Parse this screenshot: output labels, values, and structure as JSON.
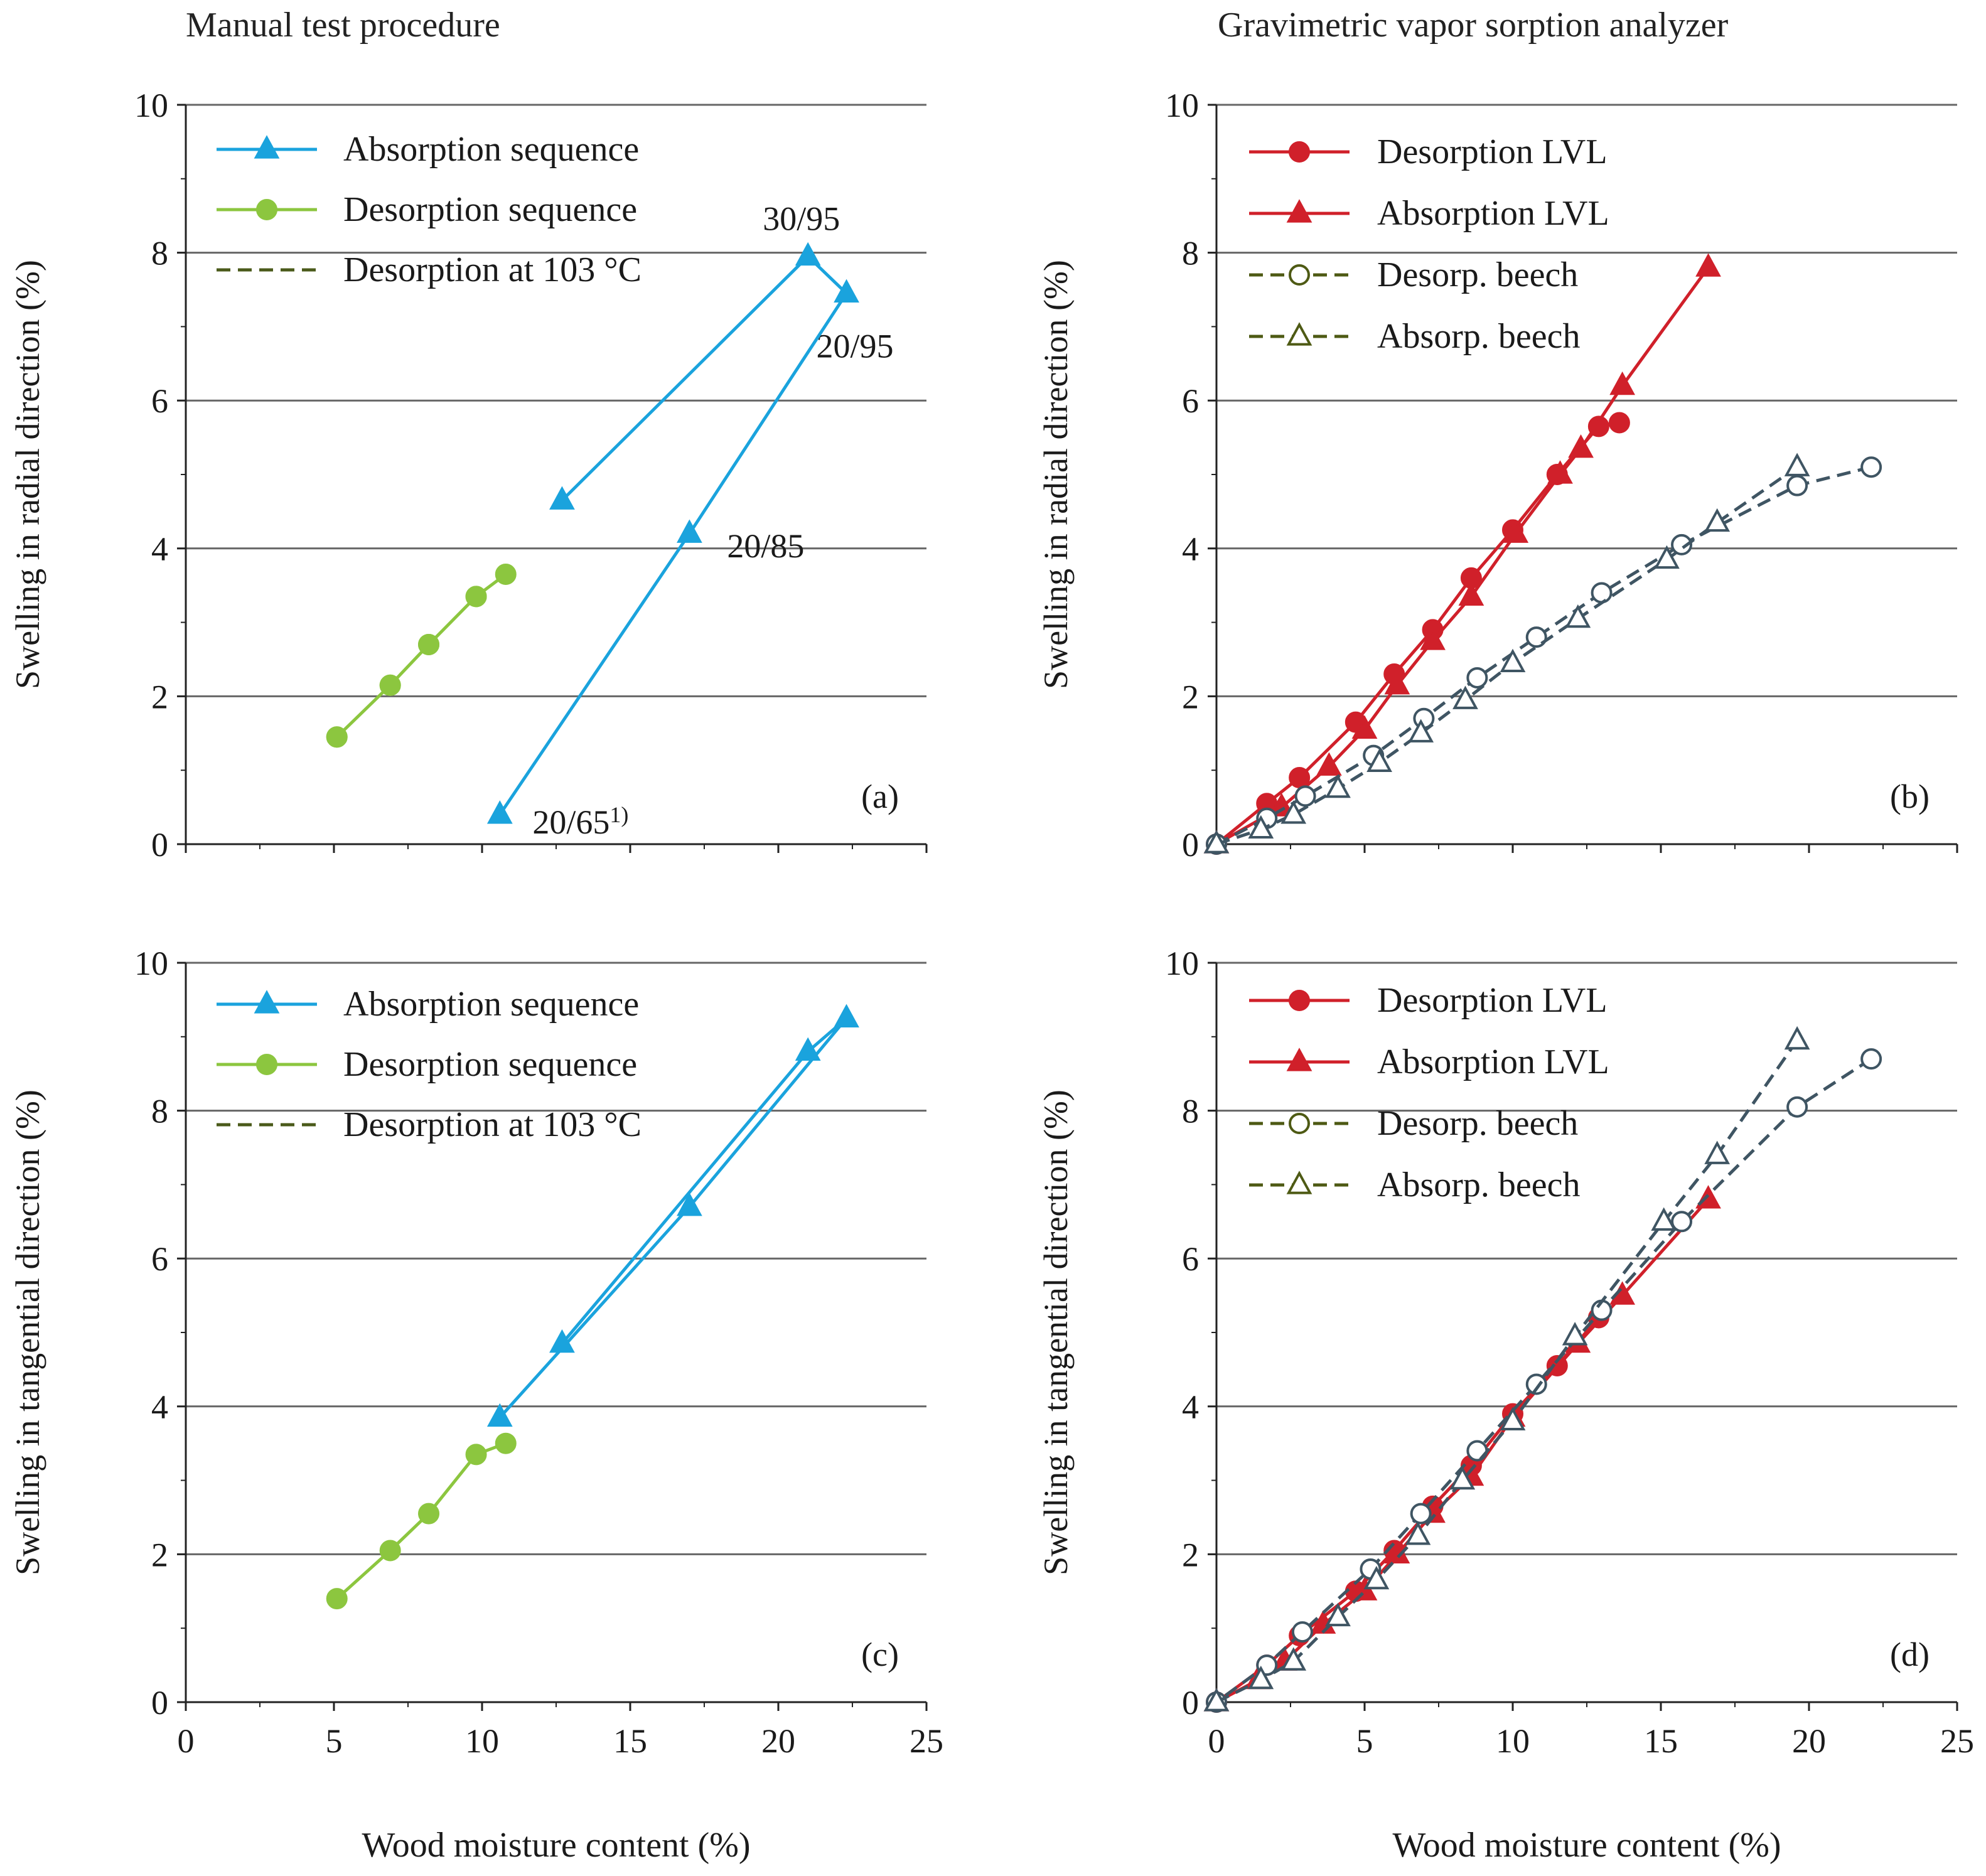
{
  "column_titles": {
    "left": "Manual test procedure",
    "right": "Gravimetric vapor sorption analyzer"
  },
  "colors": {
    "absorption_seq": "#1aa3dd",
    "desorption_seq": "#8cc63f",
    "desorption_103": "#4a5a1a",
    "lvl": "#d0202a",
    "beech": "#3f5563",
    "beech_legend": "#4e5a14",
    "grid": "#666666",
    "axis": "#222222"
  },
  "chart_data": [
    {
      "id": "a",
      "type": "line",
      "panel_label": "(a)",
      "xlabel": "",
      "ylabel": "Swelling in radial direction (%)",
      "xlim": [
        0,
        25
      ],
      "ylim": [
        0,
        10
      ],
      "xticks": [
        0,
        5,
        10,
        15,
        20,
        25
      ],
      "show_xtick_labels": false,
      "yticks": [
        0,
        2,
        4,
        6,
        8,
        10
      ],
      "grid_y": [
        2,
        4,
        6,
        8,
        10
      ],
      "legend_location": "top-left",
      "series": [
        {
          "name": "Absorption sequence",
          "color_key": "absorption_seq",
          "marker": "triangle",
          "fill": true,
          "dash": false,
          "x": [
            10.6,
            17.0,
            22.3,
            21.0,
            12.7
          ],
          "y": [
            0.4,
            4.2,
            7.45,
            7.95,
            4.65
          ]
        },
        {
          "name": "Desorption sequence",
          "color_key": "desorption_seq",
          "marker": "circle",
          "fill": true,
          "dash": false,
          "x": [
            5.1,
            6.9,
            8.2,
            9.8,
            10.8,
            9.8,
            8.2,
            6.9,
            5.1
          ],
          "y": [
            1.45,
            2.15,
            2.7,
            3.35,
            3.65,
            3.35,
            2.7,
            2.15,
            1.45
          ]
        },
        {
          "name": "Desorption at 103 °C",
          "color_key": "desorption_103",
          "marker": "none",
          "fill": false,
          "dash": true,
          "x": [],
          "y": []
        }
      ],
      "annotations": [
        {
          "text": "30/95",
          "x": 21.0,
          "y": 7.95
        },
        {
          "text": "20/95",
          "x": 22.3,
          "y": 7.45
        },
        {
          "text": "20/85",
          "x": 17.0,
          "y": 4.2
        },
        {
          "text": "20/65",
          "sup": "1)",
          "x": 10.6,
          "y": 0.4
        }
      ]
    },
    {
      "id": "b",
      "type": "line",
      "panel_label": "(b)",
      "xlabel": "",
      "ylabel": "Swelling in radial direction (%)",
      "xlim": [
        0,
        25
      ],
      "ylim": [
        0,
        10
      ],
      "xticks": [
        0,
        5,
        10,
        15,
        20,
        25
      ],
      "show_xtick_labels": false,
      "yticks": [
        0,
        2,
        4,
        6,
        8,
        10
      ],
      "grid_y": [
        2,
        4,
        6,
        8,
        10
      ],
      "legend_location": "top-left",
      "series": [
        {
          "name": "Desorption LVL",
          "color_key": "lvl",
          "marker": "circle",
          "fill": true,
          "dash": false,
          "x": [
            13.6,
            12.9,
            11.5,
            10.0,
            8.6,
            7.3,
            6.0,
            4.7,
            2.8,
            1.7,
            0.0
          ],
          "y": [
            5.7,
            5.65,
            5.0,
            4.25,
            3.6,
            2.9,
            2.3,
            1.65,
            0.9,
            0.55,
            0.0
          ]
        },
        {
          "name": "Absorption LVL",
          "color_key": "lvl",
          "marker": "triangle",
          "fill": true,
          "dash": false,
          "x": [
            0.0,
            2.2,
            3.8,
            5.0,
            6.1,
            7.3,
            8.6,
            10.1,
            11.6,
            12.3,
            13.7,
            16.6
          ],
          "y": [
            0.0,
            0.5,
            1.05,
            1.55,
            2.15,
            2.75,
            3.35,
            4.2,
            5.0,
            5.35,
            6.2,
            7.8
          ]
        },
        {
          "name": "Desorp. beech",
          "color_key": "beech",
          "marker": "circle",
          "fill": false,
          "dash": true,
          "legend_color_key": "beech_legend",
          "x": [
            22.1,
            19.6,
            15.7,
            13.0,
            10.8,
            8.8,
            7.0,
            5.3,
            3.0,
            1.7,
            0.0
          ],
          "y": [
            5.1,
            4.85,
            4.05,
            3.4,
            2.8,
            2.25,
            1.7,
            1.2,
            0.65,
            0.35,
            0.0
          ]
        },
        {
          "name": "Absorp. beech",
          "color_key": "beech",
          "marker": "triangle",
          "fill": false,
          "dash": true,
          "legend_color_key": "beech_legend",
          "x": [
            0.0,
            1.5,
            2.6,
            4.1,
            5.5,
            6.9,
            8.4,
            10.0,
            12.2,
            15.2,
            16.9,
            19.6
          ],
          "y": [
            0.0,
            0.2,
            0.4,
            0.75,
            1.1,
            1.5,
            1.95,
            2.45,
            3.05,
            3.85,
            4.35,
            5.1
          ]
        }
      ]
    },
    {
      "id": "c",
      "type": "line",
      "panel_label": "(c)",
      "xlabel": "Wood moisture content (%)",
      "ylabel": "Swelling in tangential direction (%)",
      "xlim": [
        0,
        25
      ],
      "ylim": [
        0,
        10
      ],
      "xticks": [
        0,
        5,
        10,
        15,
        20,
        25
      ],
      "show_xtick_labels": true,
      "yticks": [
        0,
        2,
        4,
        6,
        8,
        10
      ],
      "grid_y": [
        2,
        4,
        6,
        8,
        10
      ],
      "legend_location": "top-left",
      "series": [
        {
          "name": "Absorption sequence",
          "color_key": "absorption_seq",
          "marker": "triangle",
          "fill": true,
          "dash": false,
          "x": [
            10.6,
            17.0,
            22.3,
            21.0,
            12.7
          ],
          "y": [
            3.85,
            6.7,
            9.25,
            8.8,
            4.85
          ]
        },
        {
          "name": "Desorption sequence",
          "color_key": "desorption_seq",
          "marker": "circle",
          "fill": true,
          "dash": false,
          "x": [
            10.8,
            9.8,
            8.2,
            6.9,
            5.1
          ],
          "y": [
            3.5,
            3.35,
            2.55,
            2.05,
            1.4
          ]
        },
        {
          "name": "Desorption at 103 °C",
          "color_key": "desorption_103",
          "marker": "none",
          "fill": false,
          "dash": true,
          "x": [],
          "y": []
        }
      ]
    },
    {
      "id": "d",
      "type": "line",
      "panel_label": "(d)",
      "xlabel": "Wood moisture content (%)",
      "ylabel": "Swelling in tangential direction (%)",
      "xlim": [
        0,
        25
      ],
      "ylim": [
        0,
        10
      ],
      "xticks": [
        0,
        5,
        10,
        15,
        20,
        25
      ],
      "show_xtick_labels": true,
      "yticks": [
        0,
        2,
        4,
        6,
        8,
        10
      ],
      "grid_y": [
        2,
        4,
        6,
        8,
        10
      ],
      "legend_location": "top-left",
      "series": [
        {
          "name": "Desorption LVL",
          "color_key": "lvl",
          "marker": "circle",
          "fill": true,
          "dash": false,
          "x": [
            12.9,
            11.5,
            10.0,
            8.6,
            7.3,
            6.0,
            4.7,
            2.8,
            1.7,
            0.0
          ],
          "y": [
            5.2,
            4.55,
            3.9,
            3.2,
            2.65,
            2.05,
            1.5,
            0.9,
            0.5,
            0.0
          ]
        },
        {
          "name": "Absorption LVL",
          "color_key": "lvl",
          "marker": "triangle",
          "fill": true,
          "dash": false,
          "x": [
            0.0,
            1.4,
            2.3,
            3.6,
            5.0,
            6.1,
            7.3,
            8.6,
            10.0,
            12.2,
            13.7,
            16.6
          ],
          "y": [
            0.0,
            0.3,
            0.55,
            1.05,
            1.5,
            2.0,
            2.55,
            3.05,
            3.85,
            4.85,
            5.5,
            6.8
          ]
        },
        {
          "name": "Desorp. beech",
          "color_key": "beech",
          "marker": "circle",
          "fill": false,
          "dash": true,
          "legend_color_key": "beech_legend",
          "x": [
            22.1,
            19.6,
            15.7,
            13.0,
            10.8,
            8.8,
            6.9,
            5.2,
            2.9,
            1.7,
            0.0
          ],
          "y": [
            8.7,
            8.05,
            6.5,
            5.3,
            4.3,
            3.4,
            2.55,
            1.8,
            0.95,
            0.5,
            0.0
          ]
        },
        {
          "name": "Absorp. beech",
          "color_key": "beech",
          "marker": "triangle",
          "fill": false,
          "dash": true,
          "legend_color_key": "beech_legend",
          "x": [
            0.0,
            1.5,
            2.6,
            4.1,
            5.4,
            6.8,
            8.3,
            10.0,
            12.1,
            15.1,
            16.9,
            19.6
          ],
          "y": [
            0.0,
            0.3,
            0.55,
            1.15,
            1.65,
            2.25,
            3.0,
            3.8,
            4.95,
            6.5,
            7.4,
            8.95
          ]
        }
      ]
    }
  ]
}
